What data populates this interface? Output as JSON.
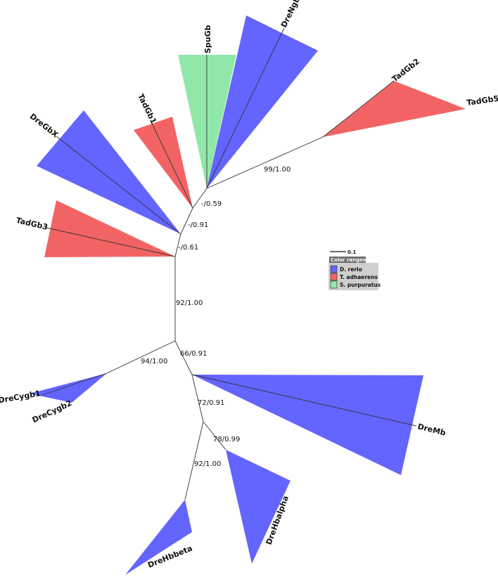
{
  "colors": {
    "d_rerio": "#6464ff",
    "t_adhaerens": "#f26464",
    "s_purpuratus": "#90e8a8",
    "legend_title_bg": "#6e6e6e",
    "legend_bg": "#cfcfcf"
  },
  "leaves": {
    "dre_ngb": "DreNgb",
    "spu_gb": "SpuGb",
    "tad_gb1": "TadGb1",
    "dre_gbx": "DreGbX",
    "tad_gb3": "TadGb3",
    "tad_gb2": "TadGb2",
    "tad_gb5": "TadGb5",
    "dre_cygb1": "DreCygb1",
    "dre_cygb2": "DreCygb2",
    "dre_mb": "DreMb",
    "dre_hbalpha": "DreHbalpha",
    "dre_hbbeta": "DreHbbeta"
  },
  "support": {
    "tadgb25_clade": "99/1.00",
    "node_059": "-/0.59",
    "node_091": "-/0.91",
    "node_061": "-/0.61",
    "stem_9200": "92/1.00",
    "cygb_clade": "94/1.00",
    "node_6691": "66/0.91",
    "node_7291": "72/0.91",
    "hbalpha_clade": "78/0.99",
    "hbbeta_clade": "92/1.00"
  },
  "scale_bar": {
    "label": "0.1"
  },
  "legend": {
    "title": "Color ranges",
    "items": [
      {
        "label": "D. rerio",
        "color": "#6464ff"
      },
      {
        "label": "T. adhaerens",
        "color": "#f26464"
      },
      {
        "label": "S. purpuratus",
        "color": "#90e8a8"
      }
    ]
  }
}
